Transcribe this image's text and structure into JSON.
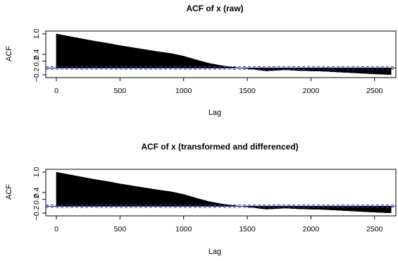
{
  "chart_data": [
    {
      "type": "bar",
      "title": "ACF of x (raw)",
      "xlabel": "Lag",
      "ylabel": "ACF",
      "xlim": [
        0,
        2640
      ],
      "ylim": [
        -0.2,
        1.0
      ],
      "x_ticks": [
        0,
        500,
        1000,
        1500,
        2000,
        2500
      ],
      "x_tick_labels": [
        "0",
        "500",
        "1000",
        "1500",
        "2000",
        "2500"
      ],
      "y_ticks": [
        -0.2,
        0.2,
        0.4,
        1.0
      ],
      "y_tick_labels": [
        "−0.2",
        "0.2",
        "0.4",
        "1.0"
      ],
      "confidence_band": [
        -0.038,
        0.038
      ],
      "confidence_band_color": "#2b3bd1",
      "bar_color": "#000000",
      "max_lag": 2630,
      "profile": {
        "lags": [
          0,
          100,
          200,
          300,
          400,
          500,
          600,
          700,
          800,
          900,
          1000,
          1100,
          1200,
          1300,
          1400,
          1500,
          1600,
          1650,
          1700,
          1800,
          1900,
          2000,
          2100,
          2200,
          2300,
          2400,
          2500,
          2630
        ],
        "acf": [
          1.0,
          0.93,
          0.86,
          0.79,
          0.73,
          0.66,
          0.6,
          0.54,
          0.48,
          0.43,
          0.35,
          0.24,
          0.14,
          0.07,
          0.02,
          -0.02,
          -0.07,
          -0.09,
          -0.08,
          -0.06,
          -0.08,
          -0.09,
          -0.1,
          -0.12,
          -0.14,
          -0.16,
          -0.18,
          -0.2
        ]
      }
    },
    {
      "type": "bar",
      "title": "ACF of x (transformed and differenced)",
      "xlabel": "Lag",
      "ylabel": "ACF",
      "xlim": [
        0,
        2640
      ],
      "ylim": [
        -0.2,
        1.0
      ],
      "x_ticks": [
        0,
        500,
        1000,
        1500,
        2000,
        2500
      ],
      "x_tick_labels": [
        "0",
        "500",
        "1000",
        "1500",
        "2000",
        "2500"
      ],
      "y_ticks": [
        -0.2,
        0.2,
        0.4,
        1.0
      ],
      "y_tick_labels": [
        "−0.2",
        "0.2",
        "0.4",
        "1.0"
      ],
      "confidence_band": [
        -0.038,
        0.038
      ],
      "confidence_band_color": "#2b3bd1",
      "bar_color": "#000000",
      "max_lag": 2630,
      "profile": {
        "lags": [
          0,
          100,
          200,
          300,
          400,
          500,
          600,
          700,
          800,
          900,
          1000,
          1100,
          1200,
          1300,
          1400,
          1500,
          1600,
          1650,
          1700,
          1800,
          1900,
          2000,
          2100,
          2200,
          2300,
          2400,
          2500,
          2630
        ],
        "acf": [
          1.0,
          0.93,
          0.86,
          0.79,
          0.73,
          0.66,
          0.6,
          0.54,
          0.48,
          0.43,
          0.35,
          0.24,
          0.14,
          0.07,
          0.02,
          -0.02,
          -0.07,
          -0.09,
          -0.08,
          -0.06,
          -0.08,
          -0.09,
          -0.1,
          -0.12,
          -0.14,
          -0.16,
          -0.18,
          -0.2
        ]
      }
    }
  ]
}
